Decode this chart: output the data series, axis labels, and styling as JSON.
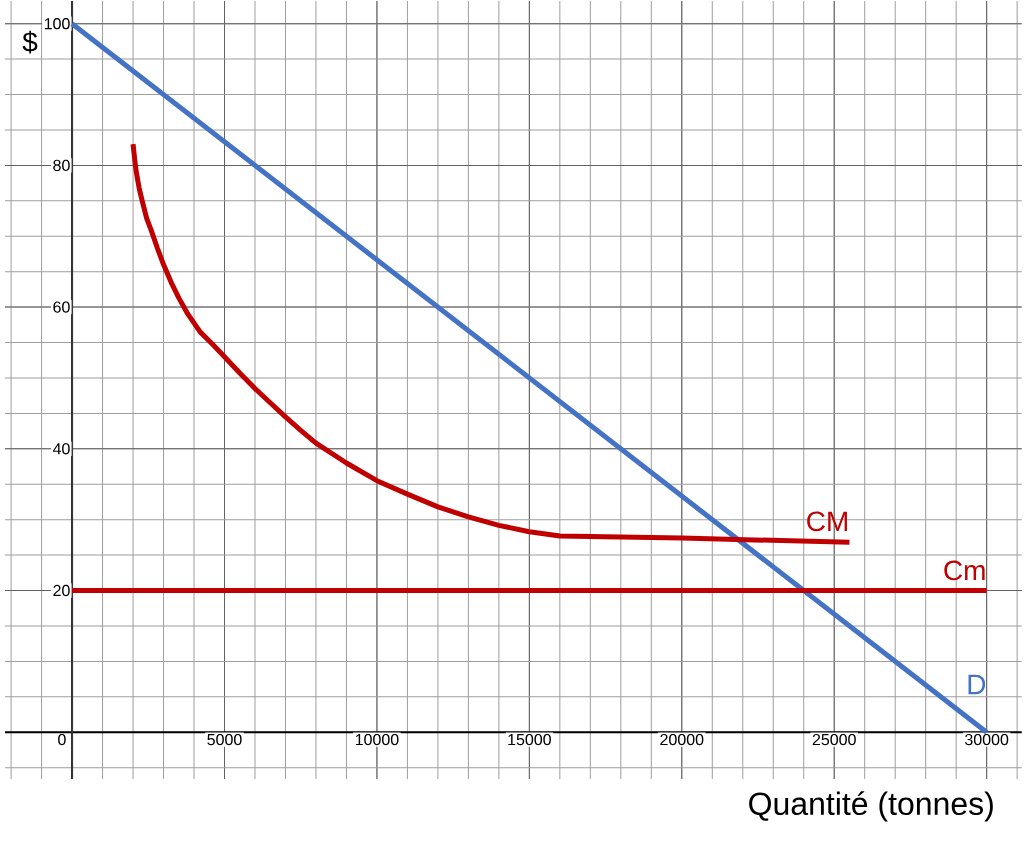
{
  "chart_data": {
    "type": "line",
    "xlabel": "Quantité (tonnes)",
    "ylabel": "$",
    "xlim": [
      -2200,
      31150
    ],
    "ylim": [
      -6.6,
      103.2
    ],
    "xticks": [
      0,
      5000,
      10000,
      15000,
      20000,
      25000,
      30000
    ],
    "yticks": [
      20,
      40,
      60,
      80,
      100
    ],
    "grid": true,
    "series": [
      {
        "name": "D",
        "color": "#4472c4",
        "x": [
          0,
          30000
        ],
        "values": [
          100,
          0
        ]
      },
      {
        "name": "Cm",
        "color": "#c00000",
        "x": [
          0,
          30000
        ],
        "values": [
          20,
          20
        ]
      },
      {
        "name": "CM",
        "color": "#c00000",
        "x": [
          2000,
          2050,
          2100,
          2200,
          2300,
          2450,
          2600,
          2800,
          3000,
          3250,
          3500,
          3800,
          4200,
          4600,
          5000,
          5500,
          6000,
          6500,
          7000,
          7500,
          8000,
          9000,
          10000,
          11000,
          12000,
          13000,
          14000,
          15000,
          16000,
          20000,
          25500
        ],
        "values": [
          83,
          81,
          79.2,
          76.8,
          75,
          72.5,
          70.8,
          68.3,
          66,
          63.5,
          61.3,
          59,
          56.5,
          54.8,
          53,
          50.7,
          48.5,
          46.5,
          44.5,
          42.6,
          40.8,
          38,
          35.5,
          33.6,
          31.8,
          30.4,
          29.2,
          28.3,
          27.7,
          27.4,
          26.8
        ]
      }
    ]
  }
}
